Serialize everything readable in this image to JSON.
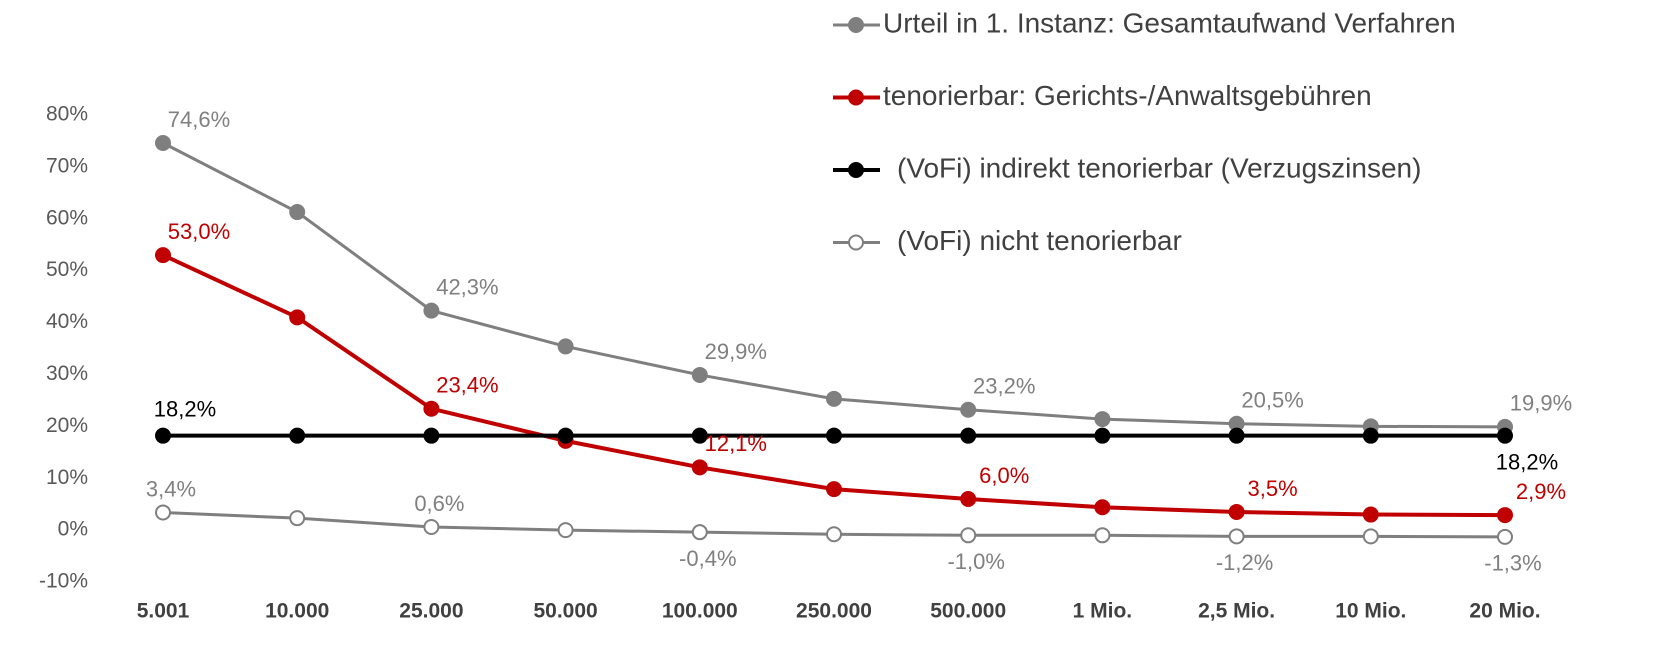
{
  "chart_data": {
    "type": "line",
    "categories": [
      "5.001",
      "10.000",
      "25.000",
      "50.000",
      "100.000",
      "250.000",
      "500.000",
      "1 Mio.",
      "2,5 Mio.",
      "10 Mio.",
      "20 Mio."
    ],
    "series": [
      {
        "name": "Urteil in 1. Instanz: Gesamtaufwand Verfahren",
        "color": "#7f7f7f",
        "values": [
          74.6,
          61.3,
          42.3,
          35.4,
          29.9,
          25.3,
          23.2,
          21.4,
          20.5,
          20.0,
          19.9
        ],
        "value_labels": [
          "74,6%",
          null,
          "42,3%",
          null,
          "29,9%",
          null,
          "23,2%",
          null,
          "20,5%",
          null,
          "19,9%"
        ]
      },
      {
        "name": "tenorierbar: Gerichts-/Anwaltsgebühren",
        "color": "#c00000",
        "values": [
          53.0,
          41.0,
          23.4,
          17.2,
          12.1,
          7.9,
          6.0,
          4.4,
          3.5,
          3.0,
          2.9
        ],
        "value_labels": [
          "53,0%",
          null,
          "23,4%",
          null,
          "12,1%",
          null,
          "6,0%",
          null,
          "3,5%",
          null,
          "2,9%"
        ]
      },
      {
        "name": "(VoFi) indirekt tenorierbar (Verzugszinsen)",
        "color": "#000000",
        "values": [
          18.2,
          18.2,
          18.2,
          18.2,
          18.2,
          18.2,
          18.2,
          18.2,
          18.2,
          18.2,
          18.2
        ],
        "value_labels": [
          "18,2%",
          null,
          null,
          null,
          null,
          null,
          null,
          null,
          null,
          null,
          "18,2%"
        ]
      },
      {
        "name": "(VoFi) nicht tenorierbar",
        "color": "#7f7f7f",
        "marker_fill": "#ffffff",
        "values": [
          3.4,
          2.3,
          0.6,
          0.0,
          -0.4,
          -0.8,
          -1.0,
          -1.0,
          -1.2,
          -1.2,
          -1.3
        ],
        "value_labels": [
          "3,4%",
          null,
          "0,6%",
          null,
          "-0,4%",
          null,
          "-1,0%",
          null,
          "-1,2%",
          null,
          "-1,3%"
        ]
      }
    ],
    "ylim": [
      -10,
      80
    ],
    "yticks": [
      {
        "value": -10,
        "label": "-10%"
      },
      {
        "value": 0,
        "label": "0%"
      },
      {
        "value": 10,
        "label": "10%"
      },
      {
        "value": 20,
        "label": "20%"
      },
      {
        "value": 30,
        "label": "30%"
      },
      {
        "value": 40,
        "label": "40%"
      },
      {
        "value": 50,
        "label": "50%"
      },
      {
        "value": 60,
        "label": "60%"
      },
      {
        "value": 70,
        "label": "70%"
      },
      {
        "value": 80,
        "label": "80%"
      }
    ],
    "grid": false,
    "legend": "upper right"
  }
}
